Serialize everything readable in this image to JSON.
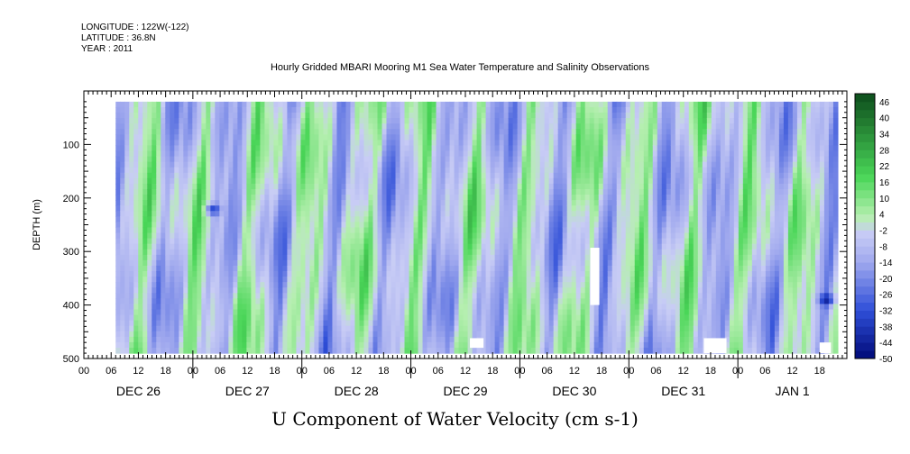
{
  "meta": {
    "longitude": "LONGITUDE : 122W(-122)",
    "latitude": "LATITUDE : 36.8N",
    "year": "YEAR : 2011"
  },
  "chart_data": {
    "type": "heatmap",
    "title": "Hourly Gridded MBARI Mooring M1 Sea Water Temperature and Salinity Observations",
    "xlabel": "",
    "ylabel": "DEPTH (m)",
    "variable_label": "U Component of Water Velocity (cm s-1)",
    "x_range_hours": [
      0,
      168
    ],
    "y_range": [
      500,
      0
    ],
    "y_data_range": [
      20,
      490
    ],
    "x_data_start_hour": 7,
    "x_data_end_hour": 166,
    "y_ticks": [
      "100",
      "200",
      "300",
      "400",
      "500"
    ],
    "x_hour_ticks": [
      "00",
      "06",
      "12",
      "18"
    ],
    "x_day_labels": [
      "DEC 26",
      "DEC 27",
      "DEC 28",
      "DEC 29",
      "DEC 30",
      "DEC 31",
      "JAN 1"
    ],
    "colorbar": {
      "labels": [
        "46",
        "40",
        "34",
        "28",
        "22",
        "16",
        "10",
        "4",
        "-2",
        "-8",
        "-14",
        "-20",
        "-26",
        "-32",
        "-38",
        "-44",
        "-50"
      ],
      "range": [
        -50,
        49
      ],
      "step": 3
    },
    "palette": {
      "deep_blue": "#000a78",
      "blue": "#2f4fd8",
      "lavender": "#9fa8ee",
      "light_lavender": "#c8ccf5",
      "light_green": "#b6efb0",
      "green": "#4ad658",
      "dark_green": "#0d4d1c"
    },
    "missing_data": [
      {
        "hour_start": 85,
        "hour_end": 88,
        "depth_start": 462,
        "depth_end": 480
      },
      {
        "hour_start": 111.5,
        "hour_end": 113.5,
        "depth_start": 293,
        "depth_end": 400
      },
      {
        "hour_start": 136.5,
        "hour_end": 141.5,
        "depth_start": 462,
        "depth_end": 490
      },
      {
        "hour_start": 162,
        "hour_end": 164.5,
        "depth_start": 470,
        "depth_end": 490
      }
    ],
    "features": [
      {
        "hour": 28.5,
        "depth": 222,
        "value": -35
      },
      {
        "hour": 163.5,
        "depth": 390,
        "value": -44
      }
    ]
  }
}
